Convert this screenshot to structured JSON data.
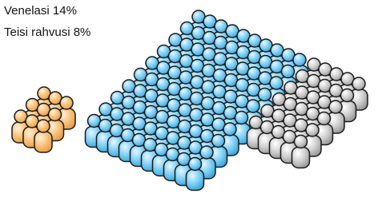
{
  "labels": [
    "Venelasi 14%",
    "Teisi rahvusi 8%"
  ]
}
